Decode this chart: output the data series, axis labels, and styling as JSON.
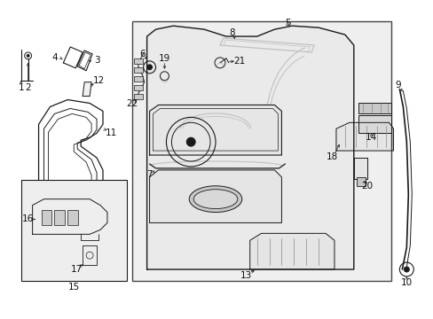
{
  "bg_color": "#ffffff",
  "fig_width": 4.89,
  "fig_height": 3.6,
  "dpi": 100,
  "line_color": "#1a1a1a",
  "label_fontsize": 7.5,
  "label_color": "#111111",
  "box_fill": "#eeeeee",
  "part_fill": "#f5f5f5"
}
